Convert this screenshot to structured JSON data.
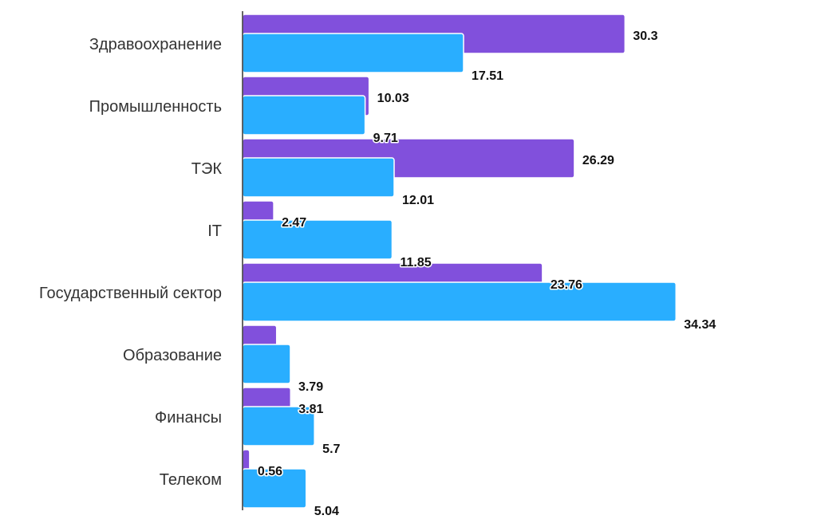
{
  "chart_data": {
    "type": "bar",
    "orientation": "horizontal",
    "categories": [
      "Здравоохранение",
      "Промышленность",
      "ТЭК",
      "IT",
      "Государственный сектор",
      "Образование",
      "Финансы",
      "Телеком"
    ],
    "series": [
      {
        "color": "#8150dc",
        "values": [
          30.3,
          10.03,
          26.29,
          2.47,
          23.76,
          2.7,
          3.81,
          0.56
        ],
        "value_labels": [
          "30.3",
          "10.03",
          "26.29",
          "2.47",
          "23.76",
          "",
          "3.81",
          "0.56"
        ]
      },
      {
        "color": "#29aeff",
        "values": [
          17.51,
          9.71,
          12.01,
          11.85,
          34.34,
          3.79,
          5.7,
          5.04
        ],
        "value_labels": [
          "17.51",
          "9.71",
          "12.01",
          "11.85",
          "34.34",
          "3.79",
          "5.7",
          "5.04"
        ]
      }
    ],
    "title": "",
    "xlabel": "",
    "ylabel": "",
    "xlim": [
      0,
      40
    ],
    "grid": false,
    "legend": "none"
  }
}
